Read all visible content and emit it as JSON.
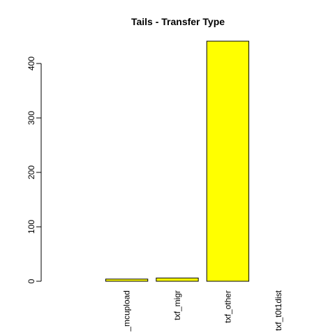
{
  "chart_data": {
    "type": "bar",
    "title": "Tails - Transfer Type",
    "xlabel": "",
    "ylabel": "",
    "categories": [
      "",
      "_mcupload",
      "txf_migr",
      "txf_other",
      "txf_t0t1dist"
    ],
    "values": [
      0,
      4,
      6,
      441,
      0
    ],
    "yticks": [
      0,
      100,
      200,
      300,
      400
    ],
    "ylim": [
      0,
      441
    ],
    "grid": false,
    "legend": "none",
    "bar_color": "#ffff00",
    "border_color": "#000000"
  }
}
